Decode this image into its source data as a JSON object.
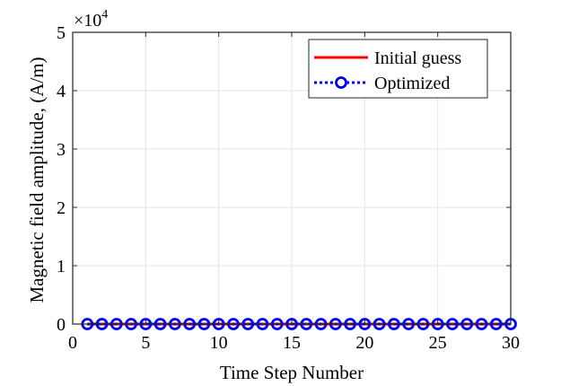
{
  "chart_data": {
    "type": "line",
    "xlabel": "Time Step Number",
    "ylabel": "Magnetic field amplitude, (A/m)",
    "xlim": [
      0,
      30
    ],
    "ylim": [
      0,
      50000
    ],
    "x_ticks": [
      0,
      5,
      10,
      15,
      20,
      25,
      30
    ],
    "y_ticks": [
      0,
      10000,
      20000,
      30000,
      40000,
      50000
    ],
    "y_tick_labels": [
      "0",
      "1",
      "2",
      "3",
      "4",
      "5"
    ],
    "y_exponent": {
      "base": "×10",
      "power": "4"
    },
    "grid": true,
    "legend_position": "top-right",
    "x": [
      1,
      2,
      3,
      4,
      5,
      6,
      7,
      8,
      9,
      10,
      11,
      12,
      13,
      14,
      15,
      16,
      17,
      18,
      19,
      20,
      21,
      22,
      23,
      24,
      25,
      26,
      27,
      28,
      29,
      30
    ],
    "series": [
      {
        "name": "Initial guess",
        "color": "#ff0000",
        "style": "solid",
        "marker": "none",
        "values": [
          0,
          0,
          0,
          0,
          0,
          0,
          0,
          0,
          0,
          0,
          0,
          0,
          0,
          0,
          0,
          0,
          0,
          0,
          0,
          0,
          0,
          0,
          0,
          0,
          0,
          0,
          0,
          0,
          0,
          0
        ]
      },
      {
        "name": "Optimized",
        "color": "#0000ff",
        "style": "dotted",
        "marker": "circle",
        "values": [
          0,
          0,
          0,
          0,
          0,
          0,
          0,
          0,
          0,
          0,
          0,
          0,
          0,
          0,
          0,
          0,
          0,
          0,
          0,
          0,
          0,
          0,
          0,
          0,
          0,
          0,
          0,
          0,
          0,
          0
        ]
      }
    ]
  }
}
